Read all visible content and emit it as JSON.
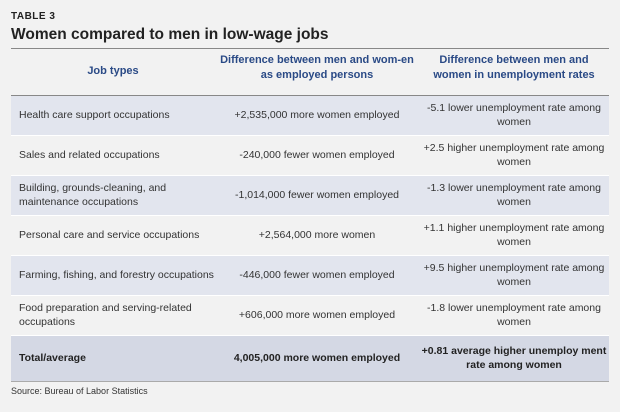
{
  "table_label": "TABLE 3",
  "title": "Women compared to men in low-wage jobs",
  "columns": [
    "Job types",
    "Difference between men and wom-en as employed persons",
    "Difference between men and women in unemployment rates"
  ],
  "rows": [
    {
      "job": "Health care support occupations",
      "employed": "+2,535,000 more women employed",
      "unemployment": "-5.1 lower unemployment rate among women"
    },
    {
      "job": "Sales and related occupations",
      "employed": "-240,000 fewer women employed",
      "unemployment": "+2.5 higher unemployment rate among women"
    },
    {
      "job": "Building, grounds-cleaning, and maintenance occupations",
      "employed": "-1,014,000 fewer women employed",
      "unemployment": "-1.3 lower unemployment rate among women"
    },
    {
      "job": "Personal care and service occupations",
      "employed": "+2,564,000 more women",
      "unemployment": "+1.1 higher unemployment rate among women"
    },
    {
      "job": "Farming, fishing, and forestry occupations",
      "employed": "-446,000 fewer women employed",
      "unemployment": "+9.5 higher unemployment rate among women"
    },
    {
      "job": "Food preparation and serving-related occupations",
      "employed": "+606,000 more women employed",
      "unemployment": "-1.8 lower unemployment rate among women"
    }
  ],
  "total": {
    "job": "Total/average",
    "employed": "4,005,000 more women employed",
    "unemployment": "+0.81 average higher unemploy ment rate among women"
  },
  "source": "Source: Bureau of Labor Statistics"
}
